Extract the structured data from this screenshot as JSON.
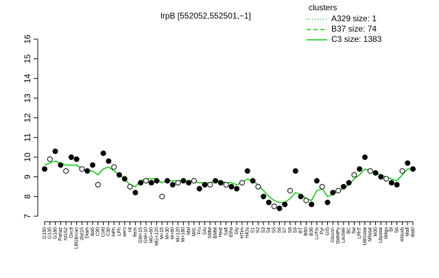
{
  "chart_data": {
    "type": "line",
    "title": "lrpB [552052,552501,−1]",
    "categories": [
      "G150",
      "G135",
      "G180",
      "Pariaz",
      "NGS2",
      "Oxctl",
      "LBGbrcao",
      "dist15",
      "Diam",
      "dia5",
      "C90",
      "Cold",
      "C30",
      "HPh",
      "LPh",
      "aero",
      "nit",
      "ferm",
      "GM+15",
      "GM+10",
      "MG+60",
      "MG+120",
      "M+15",
      "M+30",
      "M+60",
      "M+120",
      "M+180",
      "Mal",
      "M/G",
      "Fru",
      "Glu",
      "SMM",
      "BMM",
      "Heat",
      "Salt",
      "Etha",
      "Gly",
      "HTim",
      "HiOs",
      "S1",
      "S2",
      "S3",
      "S4",
      "S5",
      "S6",
      "S7",
      "S8",
      "S9",
      "BT",
      "B60",
      "B36",
      "LoTm",
      "Pyr",
      "GIS",
      "Glucon",
      "SMMPy",
      "Lactate",
      "BC",
      "Sw",
      "LPhT",
      "UBGstat",
      "M9stat",
      "M30",
      "Lbpstat",
      "M4gs",
      "Bl",
      "Sb",
      "ANoxb",
      "Malf",
      "dist0"
    ],
    "values": [
      9.4,
      9.9,
      10.3,
      9.6,
      9.3,
      10.0,
      9.9,
      9.4,
      9.3,
      9.6,
      8.6,
      10.2,
      9.8,
      9.5,
      9.1,
      8.9,
      8.5,
      8.2,
      8.7,
      8.8,
      8.7,
      8.8,
      8.0,
      8.8,
      8.6,
      8.7,
      8.8,
      8.7,
      8.8,
      8.4,
      8.6,
      8.6,
      8.8,
      8.7,
      8.6,
      8.5,
      8.4,
      8.7,
      9.3,
      8.8,
      8.5,
      8.0,
      7.7,
      7.5,
      7.4,
      7.6,
      8.3,
      9.3,
      8.0,
      7.8,
      7.6,
      8.8,
      8.5,
      7.7,
      8.2,
      8.3,
      8.5,
      8.7,
      9.1,
      9.4,
      10.0,
      9.3,
      9.2,
      9.0,
      8.9,
      8.7,
      8.6,
      9.3,
      9.7,
      9.4
    ],
    "series": [
      {
        "name": "C3 size: 1383",
        "color": "#00cc00",
        "values": [
          9.6,
          9.7,
          9.8,
          9.7,
          9.6,
          9.6,
          9.6,
          9.4,
          9.3,
          9.3,
          9.1,
          9.4,
          9.5,
          9.3,
          9.1,
          8.9,
          8.6,
          8.5,
          8.8,
          8.9,
          8.9,
          8.9,
          8.7,
          8.8,
          8.8,
          8.8,
          8.8,
          8.8,
          8.8,
          8.7,
          8.7,
          8.7,
          8.8,
          8.8,
          8.7,
          8.7,
          8.6,
          8.7,
          8.9,
          8.8,
          8.6,
          8.3,
          8.0,
          7.8,
          7.7,
          7.7,
          7.9,
          8.2,
          8.1,
          7.9,
          7.8,
          8.3,
          8.4,
          8.0,
          8.1,
          8.3,
          8.4,
          8.6,
          8.9,
          9.1,
          9.4,
          9.3,
          9.2,
          9.1,
          9.0,
          8.9,
          8.8,
          9.1,
          9.4,
          9.4
        ]
      }
    ],
    "legend": {
      "title": "clusters",
      "entries": [
        {
          "name": "A329 size: 1",
          "dash": "dotted"
        },
        {
          "name": "B37 size: 74",
          "dash": "dashed"
        },
        {
          "name": "C3 size: 1383",
          "dash": "solid"
        }
      ],
      "color": "#00cc00"
    },
    "ylim": [
      7,
      16
    ],
    "yticks": [
      7,
      8,
      9,
      10,
      11,
      12,
      13,
      14,
      15,
      16
    ]
  }
}
